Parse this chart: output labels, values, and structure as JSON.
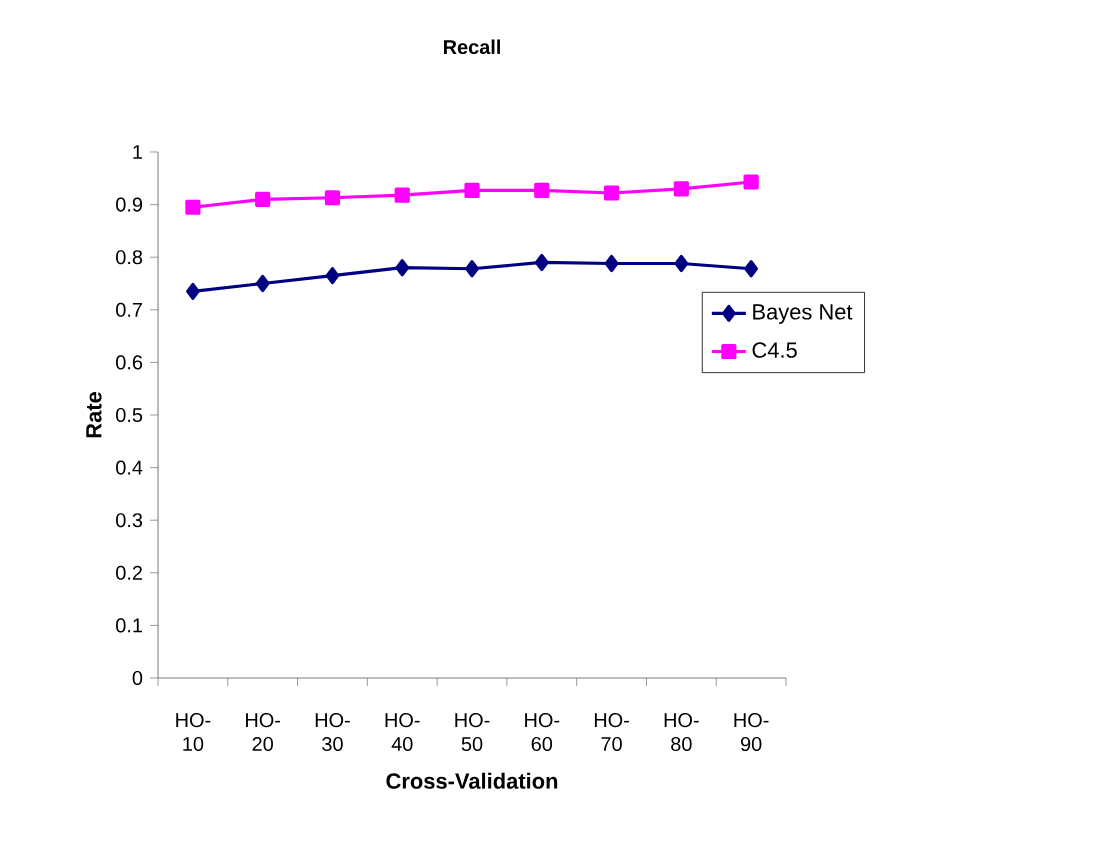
{
  "chart_data": {
    "type": "line",
    "title": "Recall",
    "xlabel": "Cross-Validation",
    "ylabel": "Rate",
    "categories": [
      "HO-10",
      "HO-20",
      "HO-30",
      "HO-40",
      "HO-50",
      "HO-60",
      "HO-70",
      "HO-80",
      "HO-90"
    ],
    "series": [
      {
        "name": "Bayes Net",
        "color": "#000080",
        "marker": "diamond",
        "values": [
          0.735,
          0.75,
          0.765,
          0.78,
          0.778,
          0.79,
          0.788,
          0.788,
          0.778
        ]
      },
      {
        "name": "C4.5",
        "color": "#ff00ff",
        "marker": "square",
        "values": [
          0.895,
          0.91,
          0.913,
          0.918,
          0.927,
          0.927,
          0.922,
          0.93,
          0.943
        ]
      }
    ],
    "ylim": [
      0,
      1
    ],
    "yticks": [
      0,
      0.1,
      0.2,
      0.3,
      0.4,
      0.5,
      0.6,
      0.7,
      0.8,
      0.9,
      1
    ],
    "grid": false,
    "legend": "right",
    "line_style": "solid"
  }
}
